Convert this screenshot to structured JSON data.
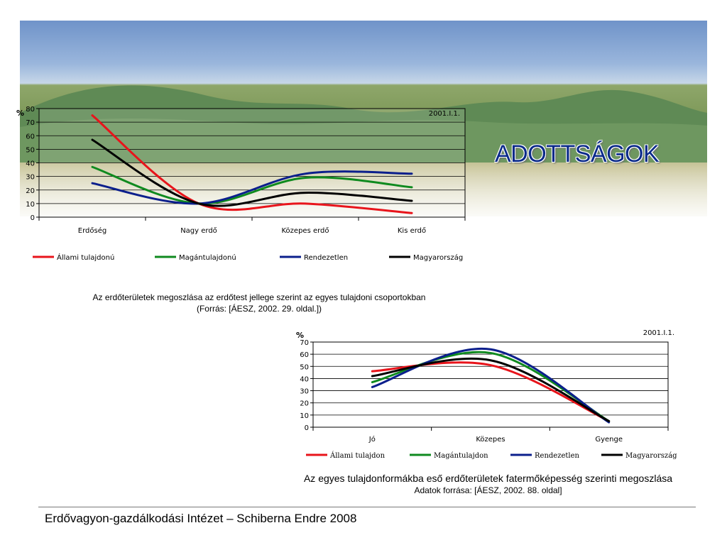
{
  "slide": {
    "title": "ADOTTSÁGOK",
    "caption1_line1": "Az erdőterületek megoszlása az erdőtest jellege szerint az egyes tulajdoni csoportokban",
    "caption1_line2": "(Forrás: [ÁESZ, 2002. 29. oldal.])",
    "caption2_line1": "Az egyes tulajdonformákba eső erdőterületek fatermőképesség szerinti megoszlása",
    "caption2_line2": "Adatok forrása: [ÁESZ, 2002. 88. oldal]",
    "footer": "Erdővagyon-gazdálkodási Intézet – Schiberna Endre 2008"
  },
  "chart_data": [
    {
      "type": "line",
      "unit_label": "%",
      "corner_note": "2001.I.1.",
      "categories": [
        "Erdőség",
        "Nagy erdő",
        "Közepes erdő",
        "Kis erdő"
      ],
      "ylim": [
        0,
        80
      ],
      "yticks": [
        0,
        10,
        20,
        30,
        40,
        50,
        60,
        70,
        80
      ],
      "grid": true,
      "legend": "bottom",
      "series": [
        {
          "name": "Állami tulajdonú",
          "color": "#e8141b",
          "values": [
            75,
            10,
            10,
            3
          ]
        },
        {
          "name": "Magántulajdonú",
          "color": "#0f8a1f",
          "values": [
            37,
            10,
            29,
            22
          ]
        },
        {
          "name": "Rendezetlen",
          "color": "#0b1f8c",
          "values": [
            25,
            10,
            32,
            32
          ]
        },
        {
          "name": "Magyarország",
          "color": "#000000",
          "values": [
            57,
            10,
            18,
            12
          ]
        }
      ]
    },
    {
      "type": "line",
      "unit_label": "%",
      "corner_note": "2001.I.1.",
      "categories": [
        "Jó",
        "Közepes",
        "Gyenge"
      ],
      "ylim": [
        0,
        70
      ],
      "yticks": [
        0,
        10,
        20,
        30,
        40,
        50,
        60,
        70
      ],
      "grid": true,
      "legend": "bottom",
      "series": [
        {
          "name": "Állami tulajdon",
          "color": "#e8141b",
          "values": [
            46,
            51,
            5
          ]
        },
        {
          "name": "Magántulajdon",
          "color": "#0f8a1f",
          "values": [
            37,
            61,
            5
          ]
        },
        {
          "name": "Rendezetlen",
          "color": "#0b1f8c",
          "values": [
            33,
            64,
            4
          ]
        },
        {
          "name": "Magyarország",
          "color": "#000000",
          "values": [
            42,
            55,
            5
          ]
        }
      ]
    }
  ]
}
